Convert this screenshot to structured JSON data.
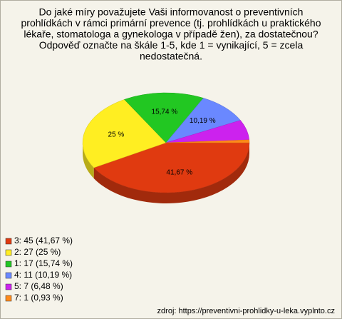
{
  "chart_data": {
    "type": "pie",
    "title_lines": [
      "Do jaké míry považujete Vaši informovanost o preventivních",
      "prohlídkách v rámci primární prevence (tj. prohlídkách u praktického",
      "lékaře, stomatologa a gynekologa v případě žen), za dostatečnou?",
      "Odpověď označte na škále 1-5, kde 1 = vynikající, 5 = zcela",
      "nedostatečná."
    ],
    "categories": [
      "3: 45 (41,67 %)",
      "2: 27 (25 %)",
      "1: 17 (15,74 %)",
      "4: 11 (10,19 %)",
      "5: 7 (6,48 %)",
      "7: 1 (0,93 %)"
    ],
    "values": [
      41.67,
      25,
      15.74,
      10.19,
      6.48,
      0.93
    ],
    "value_labels": [
      "41,67 %",
      "25 %",
      "15,74 %",
      "10,19 %",
      null,
      null
    ],
    "colors": [
      "#e03a10",
      "#ffee22",
      "#22c722",
      "#6a88ff",
      "#cc22ee",
      "#ff8a1a"
    ],
    "source": "zdroj: https://preventivni-prohlidky-u-leka.vyplnto.cz"
  }
}
